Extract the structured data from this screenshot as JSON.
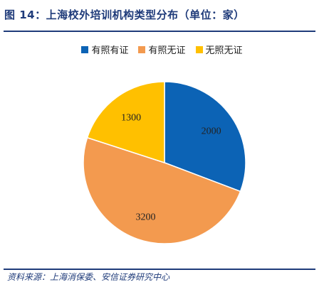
{
  "header": {
    "title": "图 14：上海校外培训机构类型分布（单位：家）"
  },
  "footer": {
    "source": "资料来源：上海消保委、安信证券研究中心"
  },
  "chart_data": {
    "type": "pie",
    "categories": [
      "有照有证",
      "有照无证",
      "无照无证"
    ],
    "values": [
      2000,
      3200,
      1300
    ],
    "colors": [
      "#0c63b5",
      "#f39a4f",
      "#ffc000"
    ],
    "labels": [
      "2000",
      "3200",
      "1300"
    ],
    "legend": "top"
  }
}
